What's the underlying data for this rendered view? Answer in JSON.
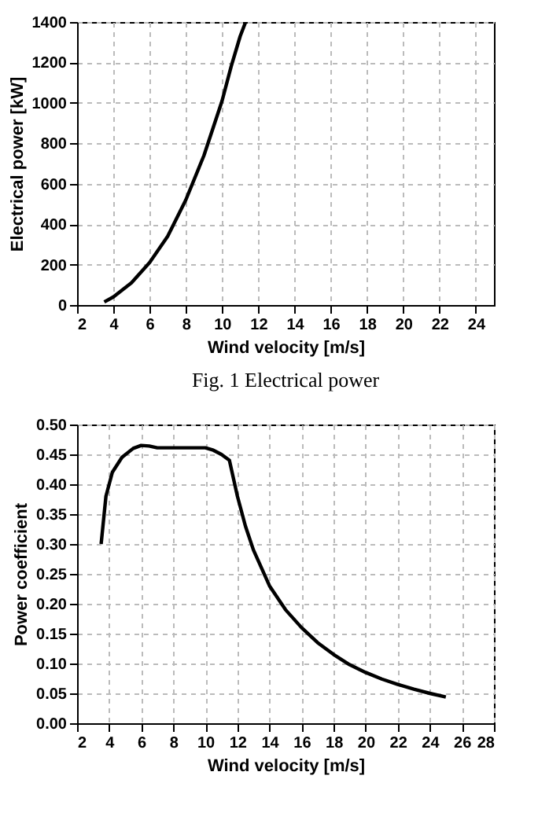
{
  "chart_data": [
    {
      "type": "line",
      "xlabel": "Wind velocity [m/s]",
      "ylabel": "Electrical power [kW]",
      "annotations": [
        "Fig. 1 Electrical power"
      ],
      "series": [
        {
          "color": "#000000",
          "x": [
            3.5,
            4,
            5,
            6,
            7,
            8,
            9,
            10,
            10.5,
            11,
            11.3
          ],
          "values": [
            15,
            40,
            110,
            210,
            340,
            520,
            740,
            1010,
            1180,
            1330,
            1400
          ]
        }
      ],
      "xlim": [
        2,
        25
      ],
      "xticks": [
        2,
        4,
        6,
        8,
        10,
        12,
        14,
        16,
        18,
        20,
        22,
        24
      ],
      "ylim": [
        0,
        1400
      ],
      "yticks": [
        0,
        200,
        400,
        600,
        800,
        1000,
        1200,
        1400
      ],
      "grid": true,
      "marker": "none",
      "line_style": "solid"
    },
    {
      "type": "line",
      "xlabel": "Wind velocity [m/s]",
      "ylabel": "Power coefficient",
      "series": [
        {
          "color": "#000000",
          "x": [
            3.5,
            3.8,
            4.2,
            4.8,
            5.5,
            6,
            6.5,
            7,
            8,
            9,
            10,
            10.5,
            11,
            11.5,
            12,
            12.5,
            13,
            14,
            15,
            16,
            17,
            18,
            19,
            20,
            21,
            22,
            23,
            24,
            25
          ],
          "values": [
            0.3,
            0.38,
            0.42,
            0.445,
            0.46,
            0.465,
            0.464,
            0.461,
            0.461,
            0.461,
            0.461,
            0.457,
            0.45,
            0.44,
            0.38,
            0.33,
            0.29,
            0.23,
            0.19,
            0.16,
            0.135,
            0.115,
            0.098,
            0.085,
            0.074,
            0.065,
            0.057,
            0.05,
            0.044
          ]
        }
      ],
      "xlim": [
        2,
        28
      ],
      "xticks": [
        2,
        4,
        6,
        8,
        10,
        12,
        14,
        16,
        18,
        20,
        22,
        24,
        26,
        28
      ],
      "ylim": [
        0,
        0.5
      ],
      "yticks": [
        {
          "value": 0,
          "label": "0.00"
        },
        {
          "value": 0.05,
          "label": "0.05"
        },
        {
          "value": 0.1,
          "label": "0.10"
        },
        {
          "value": 0.15,
          "label": "0.15"
        },
        {
          "value": 0.2,
          "label": "0.20"
        },
        {
          "value": 0.25,
          "label": "0.25"
        },
        {
          "value": 0.3,
          "label": "0.30"
        },
        {
          "value": 0.35,
          "label": "0.35"
        },
        {
          "value": 0.4,
          "label": "0.40"
        },
        {
          "value": 0.45,
          "label": "0.45"
        },
        {
          "value": 0.5,
          "label": "0.50"
        }
      ],
      "grid": true,
      "marker": "none",
      "line_style": "solid"
    }
  ]
}
